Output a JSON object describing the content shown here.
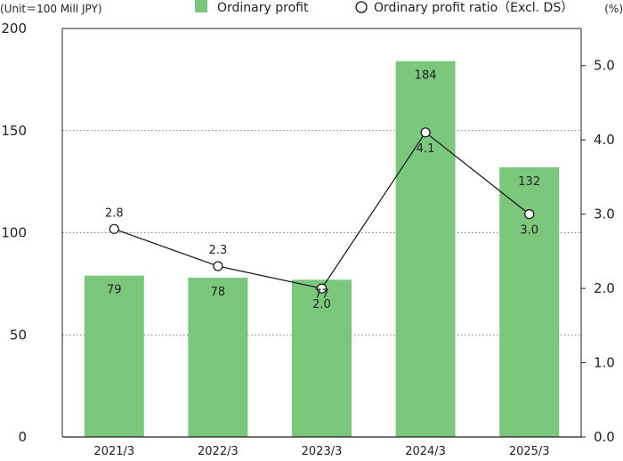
{
  "chart_data": {
    "type": "bar",
    "unit_label": "(Unit＝100 Mill JPY)",
    "right_unit_label": "(%)",
    "categories": [
      "2021/3",
      "2022/3",
      "2023/3",
      "2024/3",
      "2025/3"
    ],
    "series": [
      {
        "name": "Ordinary profit",
        "kind": "bar",
        "axis": "left",
        "values": [
          79,
          78,
          77,
          184,
          132
        ],
        "labels": [
          "79",
          "78",
          "77",
          "184",
          "132"
        ]
      },
      {
        "name": "Ordinary profit ratio（Excl. DS）",
        "kind": "line",
        "axis": "right",
        "values": [
          2.8,
          2.3,
          2.0,
          4.1,
          3.0
        ],
        "labels": [
          "2.8",
          "2.3",
          "2.0",
          "4.1",
          "3.0"
        ]
      }
    ],
    "ylim_left": [
      0,
      200
    ],
    "yticks_left": [
      "0",
      "50",
      "100",
      "150",
      "200"
    ],
    "yticks_left_values": [
      0,
      50,
      100,
      150,
      200
    ],
    "ylim_right": [
      0,
      5.5
    ],
    "yticks_right": [
      "0.0",
      "1.0",
      "2.0",
      "3.0",
      "4.0",
      "5.0"
    ],
    "yticks_right_values": [
      0,
      1,
      2,
      3,
      4,
      5
    ],
    "grid": "horizontal dotted",
    "legend_position": "top",
    "colors": {
      "bar": "#7bc87d",
      "line": "#111111",
      "marker_fill": "#ffffff",
      "axis": "#222222",
      "grid": "#555555"
    }
  }
}
